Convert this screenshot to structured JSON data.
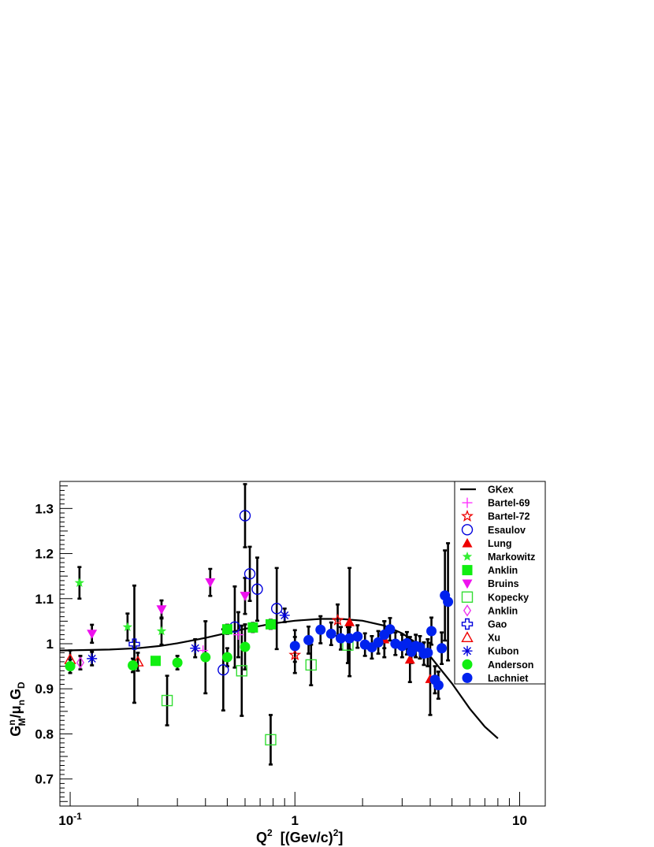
{
  "chart_data": {
    "type": "scatter",
    "x_scale": "log",
    "xlim": [
      0.09,
      13
    ],
    "ylim": [
      0.64,
      1.36
    ],
    "grid": false,
    "legend_position": "top-right",
    "y_ticks": [
      "0.7",
      "0.8",
      "0.9",
      "1",
      "1.1",
      "1.2",
      "1.3"
    ],
    "x_ticks": [
      {
        "value": 0.1,
        "base": "10",
        "exp": "-1"
      },
      {
        "value": 1,
        "base": "1",
        "exp": ""
      },
      {
        "value": 10,
        "base": "10",
        "exp": ""
      }
    ],
    "ylabel": {
      "p1": "G",
      "p1sup": "n",
      "p1sub": "M",
      "p2": "/μ",
      "p2sub": "n",
      "p3": "G",
      "p3sub": "D"
    },
    "xlabel": {
      "p1": "Q",
      "p1sup": "2",
      "p2": "  [(Gev/c)",
      "p2sup": "2",
      "p3": "]"
    },
    "curve": {
      "name": "GKex",
      "color": "#000000",
      "points": [
        [
          0.09,
          0.985
        ],
        [
          0.15,
          0.987
        ],
        [
          0.2,
          0.99
        ],
        [
          0.25,
          0.995
        ],
        [
          0.3,
          1.001
        ],
        [
          0.4,
          1.013
        ],
        [
          0.5,
          1.024
        ],
        [
          0.6,
          1.033
        ],
        [
          0.8,
          1.045
        ],
        [
          1.0,
          1.051
        ],
        [
          1.3,
          1.055
        ],
        [
          1.6,
          1.055
        ],
        [
          2.0,
          1.051
        ],
        [
          2.5,
          1.04
        ],
        [
          3.0,
          1.023
        ],
        [
          3.5,
          1.0
        ],
        [
          4.0,
          0.972
        ],
        [
          5.0,
          0.912
        ],
        [
          6.0,
          0.856
        ],
        [
          7.0,
          0.816
        ],
        [
          8.0,
          0.79
        ]
      ]
    },
    "series": [
      {
        "name": "Bartel-69",
        "marker": "plus",
        "color": "#ff33ff",
        "fill": false,
        "points": [
          [
            0.39,
            0.985,
            0.0
          ],
          [
            0.56,
            1.02,
            0.05
          ]
        ]
      },
      {
        "name": "Bartel-72",
        "marker": "star",
        "color": "#ee0000",
        "fill": false,
        "points": [
          [
            1.0,
            0.975,
            0.04
          ],
          [
            1.55,
            1.052,
            0.035
          ]
        ]
      },
      {
        "name": "Esaulov",
        "marker": "circle",
        "color": "#0000dd",
        "fill": false,
        "points": [
          [
            0.48,
            0.942,
            0.09
          ],
          [
            0.54,
            1.037,
            0.09
          ],
          [
            0.6,
            1.284,
            0.07
          ],
          [
            0.63,
            1.155,
            0.06
          ],
          [
            0.68,
            1.121,
            0.07
          ],
          [
            0.83,
            1.078,
            0.09
          ]
        ]
      },
      {
        "name": "Lung",
        "marker": "triangle",
        "color": "#ee0000",
        "fill": true,
        "points": [
          [
            1.75,
            1.048,
            0.12
          ],
          [
            2.5,
            1.01,
            0.04
          ],
          [
            3.25,
            0.965,
            0.05
          ],
          [
            4.0,
            0.922,
            0.08
          ]
        ]
      },
      {
        "name": "Markowitz",
        "marker": "star",
        "color": "#33ee33",
        "fill": true,
        "points": [
          [
            0.11,
            1.135,
            0.035
          ],
          [
            0.18,
            1.037,
            0.03
          ],
          [
            0.255,
            1.028,
            0.03
          ]
        ]
      },
      {
        "name": "Anklin",
        "marker": "square",
        "color": "#11ee11",
        "fill": true,
        "points": [
          [
            0.24,
            0.962,
            0.0
          ],
          [
            0.5,
            1.032,
            0.01
          ],
          [
            0.65,
            1.036,
            0.01
          ],
          [
            0.78,
            1.043,
            0.01
          ]
        ]
      },
      {
        "name": "Bruins",
        "marker": "triangle-down",
        "color": "#ee11ee",
        "fill": true,
        "points": [
          [
            0.125,
            1.022,
            0.02
          ],
          [
            0.255,
            1.076,
            0.02
          ],
          [
            0.42,
            1.136,
            0.03
          ],
          [
            0.6,
            1.106,
            0.04
          ]
        ]
      },
      {
        "name": "Kopecky",
        "marker": "square",
        "color": "#33dd33",
        "fill": false,
        "points": [
          [
            0.27,
            0.874,
            0.055
          ],
          [
            0.58,
            0.94,
            0.1
          ],
          [
            0.78,
            0.787,
            0.055
          ],
          [
            1.18,
            0.953,
            0.045
          ],
          [
            1.72,
            0.997,
            0.04
          ]
        ]
      },
      {
        "name": "Anklin",
        "marker": "diamond",
        "color": "#ee33ee",
        "fill": false,
        "points": [
          [
            0.111,
            0.958,
            0.015
          ]
        ]
      },
      {
        "name": "Gao",
        "marker": "cross",
        "color": "#0000dd",
        "fill": false,
        "points": [
          [
            0.193,
            0.999,
            0.13
          ]
        ]
      },
      {
        "name": "Xu",
        "marker": "triangle",
        "color": "#ee0000",
        "fill": false,
        "points": [
          [
            0.1,
            0.965,
            0.02
          ],
          [
            0.2,
            0.96,
            0.02
          ]
        ]
      },
      {
        "name": "Kubon",
        "marker": "asterisk",
        "color": "#0000dd",
        "fill": false,
        "points": [
          [
            0.125,
            0.967,
            0.015
          ],
          [
            0.36,
            0.99,
            0.02
          ],
          [
            0.9,
            1.063,
            0.015
          ]
        ]
      },
      {
        "name": "Anderson",
        "marker": "circle",
        "color": "#11ee11",
        "fill": true,
        "points": [
          [
            0.1,
            0.95,
            0.015
          ],
          [
            0.19,
            0.952,
            0.015
          ],
          [
            0.3,
            0.958,
            0.015
          ],
          [
            0.4,
            0.97,
            0.08
          ],
          [
            0.5,
            0.97,
            0.02
          ],
          [
            0.6,
            0.993,
            0.05
          ]
        ]
      },
      {
        "name": "Lachniet",
        "marker": "circle",
        "color": "#0022ee",
        "fill": true,
        "points": [
          [
            1.0,
            0.995,
            0.035
          ],
          [
            1.15,
            1.008,
            0.03
          ],
          [
            1.3,
            1.031,
            0.03
          ],
          [
            1.45,
            1.022,
            0.025
          ],
          [
            1.6,
            1.012,
            0.025
          ],
          [
            1.75,
            1.012,
            0.025
          ],
          [
            1.9,
            1.016,
            0.025
          ],
          [
            2.05,
            0.998,
            0.025
          ],
          [
            2.2,
            0.992,
            0.025
          ],
          [
            2.35,
            1.003,
            0.025
          ],
          [
            2.5,
            1.02,
            0.03
          ],
          [
            2.65,
            1.032,
            0.025
          ],
          [
            2.8,
            1.0,
            0.025
          ],
          [
            3.0,
            0.995,
            0.025
          ],
          [
            3.15,
            1.001,
            0.025
          ],
          [
            3.3,
            0.982,
            0.025
          ],
          [
            3.45,
            0.995,
            0.025
          ],
          [
            3.6,
            0.992,
            0.025
          ],
          [
            3.75,
            0.978,
            0.025
          ],
          [
            3.9,
            0.98,
            0.03
          ],
          [
            4.05,
            1.028,
            0.03
          ],
          [
            4.2,
            0.92,
            0.03
          ],
          [
            4.35,
            0.908,
            0.03
          ],
          [
            4.5,
            0.99,
            0.035
          ],
          [
            4.65,
            1.107,
            0.1
          ],
          [
            4.8,
            1.093,
            0.13
          ]
        ]
      }
    ]
  }
}
